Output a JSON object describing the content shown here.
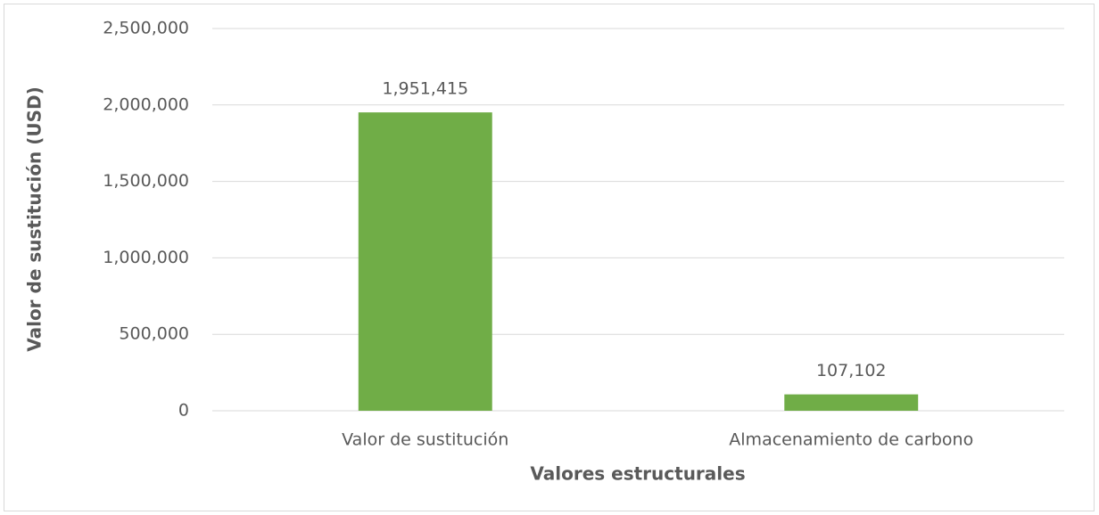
{
  "chart_data": {
    "type": "bar",
    "categories": [
      "Valor de sustitución",
      "Almacenamiento de carbono"
    ],
    "values": [
      1951415,
      107102
    ],
    "value_labels": [
      "1,951,415",
      "107,102"
    ],
    "color": "#70ad47",
    "x_label": "Valores estructurales",
    "y_label": "Valor de sustitución  (USD)",
    "ylim": [
      0,
      2500000
    ],
    "yticks": [
      0,
      {
        "value": 500000,
        "label": "500,000"
      },
      {
        "value": 1000000,
        "label": "1,000,000"
      },
      {
        "value": 1500000,
        "label": "1,500,000"
      },
      {
        "value": 2000000,
        "label": "2,000,000"
      },
      {
        "value": 2500000,
        "label": "2,500,000"
      }
    ],
    "grid": true
  }
}
